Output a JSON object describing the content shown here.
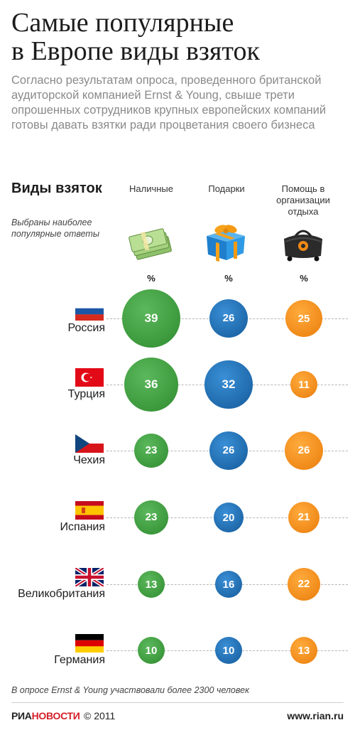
{
  "title_line1": "Самые популярные",
  "title_line2": "в Европе виды взяток",
  "intro_text": "Согласно результатам опроса, проведенного британской аудиторской компанией Ernst & Young, свыше трети опрошенных сотрудников крупных европейских компаний готовы давать взятки ради процветания своего бизнеса",
  "section_title": "Виды взяток",
  "note": "Выбраны наиболее популярные ответы",
  "footnote": "В опросе Ernst & Young участвовали более 2300 человек",
  "footer": {
    "logo_ria": "РИА",
    "logo_novosti": "НОВОСТИ",
    "copyright": "© 2011",
    "site": "www.rian.ru"
  },
  "colors": {
    "cash": "#3a9d3a",
    "gifts": "#1f6fb8",
    "leisure": "#f28a16"
  },
  "chart_data": {
    "type": "bubble",
    "columns": [
      {
        "key": "cash",
        "label": "Наличные",
        "unit": "%",
        "icon": "money-stack-icon"
      },
      {
        "key": "gifts",
        "label": "Подарки",
        "unit": "%",
        "icon": "gift-box-icon"
      },
      {
        "key": "leisure",
        "label": "Помощь в организации отдыха",
        "unit": "%",
        "icon": "travel-bag-icon"
      }
    ],
    "rows": [
      {
        "country": "Россия",
        "flag": "russia-flag",
        "values": [
          39,
          26,
          25
        ]
      },
      {
        "country": "Турция",
        "flag": "turkey-flag",
        "values": [
          36,
          32,
          11
        ]
      },
      {
        "country": "Чехия",
        "flag": "czech-flag",
        "values": [
          23,
          26,
          26
        ]
      },
      {
        "country": "Испания",
        "flag": "spain-flag",
        "values": [
          23,
          20,
          21
        ]
      },
      {
        "country": "Великобритания",
        "flag": "uk-flag",
        "values": [
          13,
          16,
          22
        ]
      },
      {
        "country": "Германия",
        "flag": "germany-flag",
        "values": [
          10,
          10,
          13
        ]
      }
    ]
  }
}
